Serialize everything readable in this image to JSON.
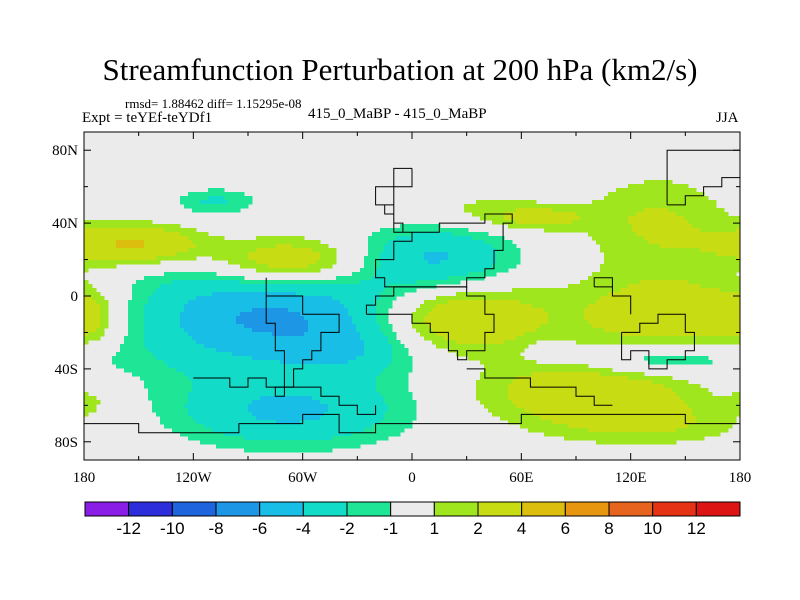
{
  "title": "Streamfunction Perturbation at 200 hPa (km2/s)",
  "stats": "rmsd= 1.88462 diff= 1.15295e-08",
  "expt": "Expt = teYEf-teYDf1",
  "case": "415_0_MaBP - 415_0_MaBP",
  "season": "JJA",
  "lat_ticks": [
    "80N",
    "40N",
    "0",
    "40S",
    "80S"
  ],
  "lon_ticks": [
    "180",
    "120W",
    "60W",
    "0",
    "60E",
    "120E",
    "180"
  ],
  "colorbar": {
    "labels": [
      "-12",
      "-10",
      "-8",
      "-6",
      "-4",
      "-2",
      "-1",
      "1",
      "2",
      "4",
      "6",
      "8",
      "10",
      "12"
    ],
    "colors": [
      "#8a1ee6",
      "#2d2ddc",
      "#1e64dc",
      "#1e96e6",
      "#18bee6",
      "#12dcc8",
      "#1ee696",
      "#ebebeb",
      "#a0e61e",
      "#c8dc14",
      "#dcbe0f",
      "#e6960f",
      "#e6641e",
      "#e63214",
      "#dc1414"
    ]
  },
  "chart_data": {
    "type": "contour-map",
    "variable": "Streamfunction Perturbation at 200 hPa",
    "units": "km2/s",
    "lon_range": [
      -180,
      180
    ],
    "lat_range": [
      -90,
      90
    ],
    "levels": [
      -12,
      -10,
      -8,
      -6,
      -4,
      -2,
      -1,
      1,
      2,
      4,
      6,
      8,
      10,
      12
    ],
    "blobs": [
      {
        "lon": -75,
        "lat": -12,
        "rx": 88,
        "ry": 30,
        "peak": -6.5
      },
      {
        "lon": -35,
        "lat": -30,
        "rx": 30,
        "ry": 12,
        "peak": -1.6
      },
      {
        "lon": -68,
        "lat": -64,
        "rx": 60,
        "ry": 18,
        "peak": -4.2
      },
      {
        "lon": 15,
        "lat": 22,
        "rx": 40,
        "ry": 18,
        "peak": -4.0
      },
      {
        "lon": -108,
        "lat": 52,
        "rx": 22,
        "ry": 7,
        "peak": -2.2
      },
      {
        "lon": 25,
        "lat": 62,
        "rx": 15,
        "ry": 9,
        "peak": -1.4
      },
      {
        "lon": 135,
        "lat": -35,
        "rx": 45,
        "ry": 9,
        "peak": -2.8
      },
      {
        "lon": 75,
        "lat": -30,
        "rx": 12,
        "ry": 6,
        "peak": -1.3
      },
      {
        "lon": -152,
        "lat": 28,
        "rx": 38,
        "ry": 11,
        "peak": 4.5
      },
      {
        "lon": -68,
        "lat": 18,
        "rx": 42,
        "ry": 14,
        "peak": 5.0
      },
      {
        "lon": 22,
        "lat": -12,
        "rx": 48,
        "ry": 20,
        "peak": 5.3
      },
      {
        "lon": 150,
        "lat": -10,
        "rx": 60,
        "ry": 22,
        "peak": 3.8
      },
      {
        "lon": 95,
        "lat": -52,
        "rx": 60,
        "ry": 17,
        "peak": 3.5
      },
      {
        "lon": 68,
        "lat": 43,
        "rx": 30,
        "ry": 7,
        "peak": 2.5
      },
      {
        "lon": 135,
        "lat": 40,
        "rx": 40,
        "ry": 26,
        "peak": 2.2
      },
      {
        "lon": 25,
        "lat": 53,
        "rx": 38,
        "ry": 20,
        "peak": 1.4
      },
      {
        "lon": -178,
        "lat": -12,
        "rx": 15,
        "ry": 15,
        "peak": 2.0
      },
      {
        "lon": -178,
        "lat": -58,
        "rx": 9,
        "ry": 6,
        "peak": 1.3
      },
      {
        "lon": 128,
        "lat": -70,
        "rx": 55,
        "ry": 12,
        "peak": 2.0
      }
    ],
    "coastline_outline": [
      [
        [
          -2,
          70
        ],
        [
          -8,
          60
        ],
        [
          -18,
          50
        ],
        [
          -12,
          40
        ],
        [
          -5,
          35
        ],
        [
          10,
          35
        ],
        [
          15,
          42
        ],
        [
          25,
          40
        ],
        [
          40,
          45
        ],
        [
          55,
          40
        ],
        [
          50,
          25
        ],
        [
          45,
          15
        ],
        [
          40,
          10
        ],
        [
          30,
          5
        ],
        [
          10,
          5
        ],
        [
          -5,
          5
        ],
        [
          -15,
          10
        ],
        [
          -18,
          20
        ],
        [
          -10,
          28
        ],
        [
          -2,
          35
        ],
        [
          -8,
          45
        ],
        [
          -15,
          52
        ],
        [
          -8,
          62
        ],
        [
          -2,
          70
        ]
      ],
      [
        [
          -80,
          8
        ],
        [
          -78,
          2
        ],
        [
          -72,
          -2
        ],
        [
          -60,
          -8
        ],
        [
          -45,
          -12
        ],
        [
          -40,
          -22
        ],
        [
          -48,
          -28
        ],
        [
          -55,
          -35
        ],
        [
          -60,
          -42
        ],
        [
          -65,
          -48
        ],
        [
          -68,
          -54
        ],
        [
          -74,
          -50
        ],
        [
          -72,
          -40
        ],
        [
          -70,
          -28
        ],
        [
          -75,
          -15
        ],
        [
          -80,
          -5
        ],
        [
          -80,
          8
        ]
      ],
      [
        [
          -25,
          -10
        ],
        [
          -12,
          -10
        ],
        [
          0,
          -15
        ],
        [
          10,
          -20
        ],
        [
          20,
          -30
        ],
        [
          25,
          -35
        ],
        [
          32,
          -30
        ],
        [
          40,
          -20
        ],
        [
          45,
          -10
        ],
        [
          40,
          0
        ],
        [
          30,
          5
        ],
        [
          15,
          5
        ],
        [
          0,
          3
        ],
        [
          -10,
          0
        ],
        [
          -20,
          -5
        ],
        [
          -25,
          -10
        ]
      ],
      [
        [
          115,
          -20
        ],
        [
          125,
          -14
        ],
        [
          135,
          -12
        ],
        [
          142,
          -12
        ],
        [
          150,
          -22
        ],
        [
          153,
          -28
        ],
        [
          150,
          -37
        ],
        [
          140,
          -38
        ],
        [
          130,
          -32
        ],
        [
          118,
          -34
        ],
        [
          114,
          -26
        ],
        [
          115,
          -20
        ]
      ],
      [
        [
          100,
          5
        ],
        [
          110,
          -2
        ],
        [
          120,
          -8
        ],
        [
          118,
          0
        ],
        [
          110,
          8
        ],
        [
          100,
          5
        ]
      ],
      [
        [
          140,
          50
        ],
        [
          150,
          55
        ],
        [
          160,
          60
        ],
        [
          172,
          65
        ],
        [
          178,
          70
        ],
        [
          178,
          78
        ],
        [
          160,
          78
        ],
        [
          140,
          72
        ],
        [
          138,
          60
        ],
        [
          140,
          50
        ]
      ],
      [
        [
          -180,
          -70
        ],
        [
          -150,
          -76
        ],
        [
          -120,
          -74
        ],
        [
          -95,
          -72
        ],
        [
          -75,
          -72
        ],
        [
          -60,
          -66
        ],
        [
          -55,
          -63
        ],
        [
          -40,
          -76
        ],
        [
          -20,
          -72
        ],
        [
          0,
          -70
        ],
        [
          30,
          -69
        ],
        [
          60,
          -67
        ],
        [
          90,
          -66
        ],
        [
          120,
          -66
        ],
        [
          150,
          -68
        ],
        [
          170,
          -72
        ],
        [
          180,
          -75
        ]
      ],
      [
        [
          -120,
          -46
        ],
        [
          -100,
          -48
        ],
        [
          -90,
          -45
        ],
        [
          -80,
          -50
        ],
        [
          -70,
          -48
        ],
        [
          -60,
          -52
        ],
        [
          -50,
          -56
        ],
        [
          -40,
          -60
        ],
        [
          -30,
          -64
        ],
        [
          -20,
          -60
        ]
      ],
      [
        [
          30,
          -40
        ],
        [
          40,
          -45
        ],
        [
          55,
          -46
        ],
        [
          65,
          -50
        ],
        [
          75,
          -52
        ],
        [
          90,
          -55
        ],
        [
          100,
          -58
        ],
        [
          110,
          -62
        ]
      ]
    ]
  }
}
